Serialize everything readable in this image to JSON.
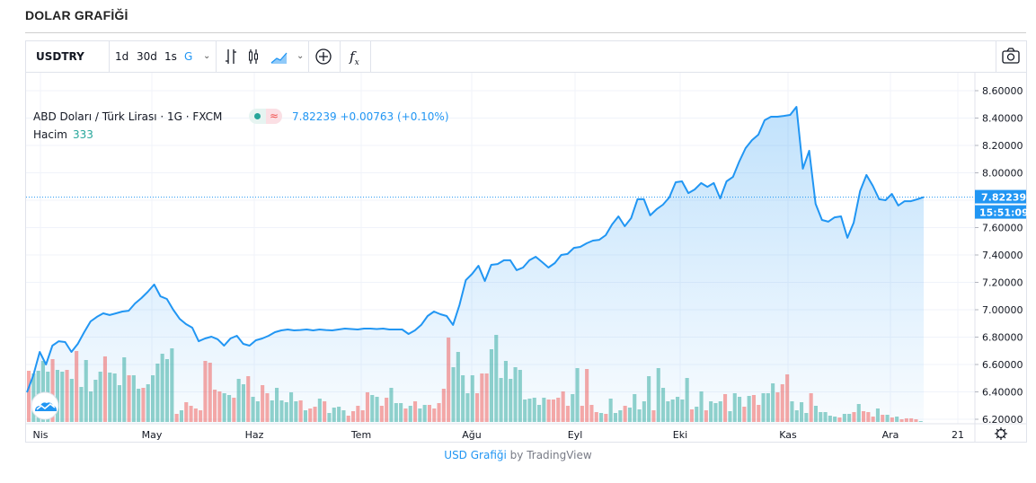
{
  "page_title": "DOLAR GRAFİĞİ",
  "toolbar": {
    "symbol": "USDTRY",
    "ranges": [
      "1d",
      "30d",
      "1s",
      "G"
    ],
    "active_range": "G",
    "icons": [
      "chevron-down-icon",
      "bars-icon",
      "candles-icon",
      "area-chart-icon",
      "chevron-down-icon",
      "plus-circle-icon",
      "fx-icon",
      "camera-icon"
    ]
  },
  "legend": {
    "name": "ABD Doları / Türk Lirası · 1G · FXCM",
    "badge_wave": "≈",
    "last": "7.82239",
    "change": "+0.00763",
    "change_pct": "(+0.10%)",
    "volume_label": "Hacim",
    "volume_value": "333"
  },
  "price_axis": {
    "last_label": "7.82239",
    "countdown": "15:51:09"
  },
  "footer": {
    "link": "USD Grafiği",
    "by": " by TradingView"
  },
  "colors": {
    "line": "#2196f3",
    "up_volume": "#26a69a",
    "down_volume": "#ef5350",
    "accent": "#2196f3"
  },
  "chart_data": {
    "type": "area",
    "ylim": [
      6.2,
      8.6
    ],
    "yticks": [
      "8.60000",
      "8.40000",
      "8.20000",
      "8.00000",
      "7.80000",
      "7.60000",
      "7.40000",
      "7.20000",
      "7.00000",
      "6.80000",
      "6.60000",
      "6.40000",
      "6.20000"
    ],
    "ytick_values": [
      8.6,
      8.4,
      8.2,
      8.0,
      7.8,
      7.6,
      7.4,
      7.2,
      7.0,
      6.8,
      6.6,
      6.4,
      6.2
    ],
    "hidden_ticks": [
      "7.80000"
    ],
    "xticks": [
      "Nis",
      "May",
      "Haz",
      "Tem",
      "Ağu",
      "Eyl",
      "Eki",
      "Kas",
      "Ara",
      "21"
    ],
    "grid": true,
    "last_value": 7.82239,
    "values": [
      6.397,
      6.521,
      6.692,
      6.6,
      6.738,
      6.77,
      6.764,
      6.692,
      6.751,
      6.836,
      6.915,
      6.948,
      6.974,
      6.961,
      6.974,
      6.987,
      6.993,
      7.046,
      7.085,
      7.131,
      7.184,
      7.098,
      7.079,
      7.0,
      6.934,
      6.895,
      6.869,
      6.77,
      6.79,
      6.803,
      6.784,
      6.738,
      6.79,
      6.81,
      6.751,
      6.738,
      6.777,
      6.79,
      6.81,
      6.836,
      6.849,
      6.856,
      6.849,
      6.852,
      6.856,
      6.849,
      6.856,
      6.852,
      6.849,
      6.856,
      6.862,
      6.859,
      6.856,
      6.862,
      6.862,
      6.859,
      6.862,
      6.856,
      6.856,
      6.856,
      6.823,
      6.849,
      6.889,
      6.954,
      6.987,
      6.967,
      6.954,
      6.889,
      7.033,
      7.216,
      7.262,
      7.321,
      7.21,
      7.328,
      7.334,
      7.361,
      7.361,
      7.289,
      7.308,
      7.361,
      7.387,
      7.348,
      7.308,
      7.341,
      7.4,
      7.407,
      7.452,
      7.459,
      7.485,
      7.505,
      7.511,
      7.544,
      7.623,
      7.682,
      7.61,
      7.669,
      7.807,
      7.807,
      7.689,
      7.734,
      7.767,
      7.82,
      7.931,
      7.938,
      7.852,
      7.879,
      7.925,
      7.898,
      7.925,
      7.813,
      7.938,
      7.97,
      8.082,
      8.18,
      8.239,
      8.279,
      8.384,
      8.41,
      8.41,
      8.416,
      8.423,
      8.482,
      8.03,
      8.161,
      7.774,
      7.656,
      7.643,
      7.675,
      7.682,
      7.525,
      7.636,
      7.866,
      7.984,
      7.905,
      7.807,
      7.8,
      7.846,
      7.761,
      7.793,
      7.793,
      7.807,
      7.82239
    ],
    "volume_relative": [
      57,
      54,
      57,
      68,
      56,
      70,
      58,
      56,
      58,
      48,
      79,
      39,
      69,
      34,
      47,
      56,
      73,
      55,
      54,
      41,
      72,
      52,
      52,
      37,
      38,
      42,
      52,
      65,
      76,
      70,
      82,
      9,
      13,
      22,
      18,
      15,
      13,
      68,
      66,
      36,
      34,
      32,
      30,
      27,
      48,
      42,
      51,
      28,
      23,
      41,
      32,
      24,
      38,
      24,
      22,
      33,
      23,
      24,
      13,
      15,
      17,
      26,
      23,
      10,
      16,
      17,
      13,
      7,
      12,
      18,
      13,
      33,
      30,
      28,
      18,
      27,
      38,
      21,
      21,
      15,
      18,
      23,
      15,
      19,
      19,
      15,
      21,
      37,
      94,
      61,
      78,
      52,
      32,
      52,
      32,
      54,
      54,
      81,
      97,
      49,
      68,
      48,
      61,
      58,
      25,
      26,
      27,
      19,
      27,
      25,
      25,
      27,
      34,
      18,
      31,
      60,
      18,
      59,
      19,
      11,
      10,
      9,
      26,
      10,
      13,
      18,
      16,
      31,
      14,
      23,
      51,
      13,
      60,
      38,
      23,
      25,
      28,
      25,
      49,
      14,
      17,
      34,
      13,
      23,
      21,
      23,
      31,
      12,
      32,
      28,
      17,
      29,
      30,
      19,
      32,
      32,
      43,
      33,
      42,
      53,
      23,
      13,
      22,
      10,
      32,
      18,
      11,
      11,
      7,
      6,
      5,
      9,
      9,
      11,
      20,
      12,
      11,
      6,
      15,
      8,
      8,
      5,
      6,
      3,
      4,
      4,
      3,
      1
    ],
    "volume_direction": "rggggrggrgrgggggrggggrggrggggggrgrrrrrrrrggrggrggrrggggggrgrrgrggggrrrrrggrrgggrgrggrrrrrgggggrrrggggggggggggrrrrrggrrrrgrgggrgggggrgggggggrggrgggrgggrgrrgggrrrggggrgggggrggrgrrrgrgrgrrrrggrggggr"
  }
}
